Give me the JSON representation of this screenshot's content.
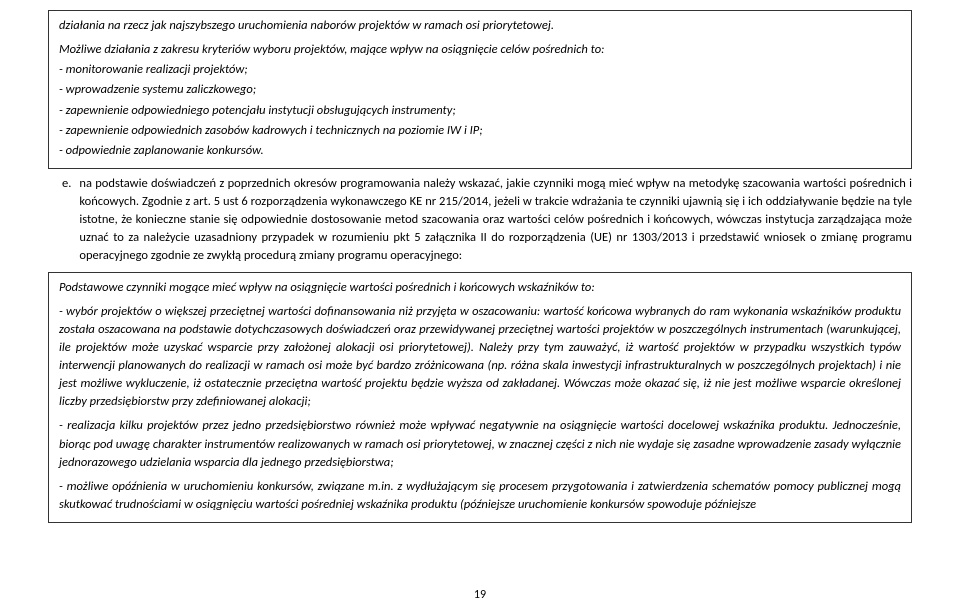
{
  "box1": {
    "line1": "działania na rzecz jak najszybszego uruchomienia naborów projektów w ramach osi priorytetowej.",
    "line2": "Możliwe działania z zakresu kryteriów wyboru projektów, mające wpływ na osiągnięcie celów pośrednich to:",
    "bullets": [
      "- monitorowanie realizacji projektów;",
      "- wprowadzenie systemu zaliczkowego;",
      "- zapewnienie odpowiedniego potencjału instytucji obsługujących instrumenty;",
      "- zapewnienie odpowiednich zasobów kadrowych i technicznych na poziomie IW i IP;",
      "- odpowiednie zaplanowanie konkursów."
    ]
  },
  "item_e": {
    "marker": "e.",
    "text": "na podstawie doświadczeń z poprzednich okresów programowania należy wskazać, jakie czynniki mogą mieć wpływ na metodykę szacowania wartości pośrednich i końcowych. Zgodnie z art. 5 ust 6 rozporządzenia wykonawczego KE nr 215/2014, jeżeli w trakcie wdrażania te czynniki ujawnią się i ich oddziaływanie będzie na tyle istotne, że konieczne stanie się odpowiednie dostosowanie metod szacowania oraz wartości celów pośrednich i końcowych, wówczas instytucja zarządzająca może uznać to za należycie uzasadniony przypadek w rozumieniu pkt 5 załącznika II do rozporządzenia (UE) nr 1303/2013 i przedstawić wniosek o zmianę programu operacyjnego zgodnie ze zwykłą procedurą zmiany programu operacyjnego:"
  },
  "box2": {
    "intro": "Podstawowe czynniki mogące mieć wpływ na osiągnięcie wartości  pośrednich i końcowych wskaźników to:",
    "p1": "- wybór projektów o większej przeciętnej wartości dofinansowania niż przyjęta w oszacowaniu: wartość końcowa wybranych do ram wykonania wskaźników produktu została oszacowana na podstawie dotychczasowych doświadczeń oraz przewidywanej przeciętnej wartości projektów w poszczególnych instrumentach (warunkującej, ile projektów może uzyskać wsparcie przy założonej alokacji osi priorytetowej). Należy przy tym zauważyć, iż wartość projektów w przypadku wszystkich typów interwencji planowanych do realizacji w ramach osi może być bardzo zróżnicowana (np. różna skala inwestycji infrastrukturalnych w poszczególnych projektach) i nie jest możliwe wykluczenie, iż ostatecznie przeciętna wartość projektu będzie wyższa od zakładanej. Wówczas może okazać się, iż nie jest możliwe wsparcie określonej liczby przedsiębiorstw przy zdefiniowanej alokacji;",
    "p2": "- realizacja kilku projektów przez jedno przedsiębiorstwo również może wpływać negatywnie na osiągnięcie wartości docelowej wskaźnika produktu. Jednocześnie, biorąc pod uwagę charakter instrumentów realizowanych w ramach osi priorytetowej, w znacznej części z nich nie wydaje się zasadne wprowadzenie zasady wyłącznie jednorazowego udzielania wsparcia dla jednego przedsiębiorstwa;",
    "p3": "- możliwe opóźnienia w uruchomieniu konkursów, związane m.in. z wydłużającym się procesem przygotowania i zatwierdzenia schematów pomocy publicznej mogą skutkować trudnościami w osiągnięciu wartości pośredniej wskaźnika produktu (późniejsze uruchomienie konkursów spowoduje późniejsze"
  },
  "page_number": "19"
}
